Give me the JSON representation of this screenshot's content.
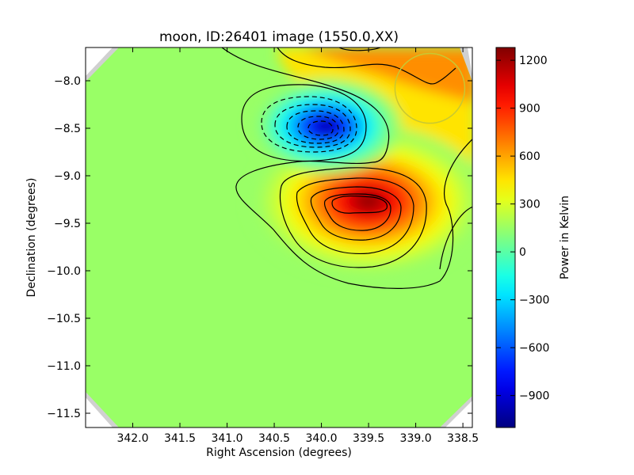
{
  "chart_data": {
    "type": "heatmap",
    "title": "moon, ID:26401 image (1550.0,XX)",
    "xlabel": "Right Ascension (degrees)",
    "ylabel": "Declination (degrees)",
    "colorbar_label": "Power in Kelvin",
    "xlim": [
      342.5,
      338.4
    ],
    "ylim": [
      -11.65,
      -7.65
    ],
    "xticks": [
      "342.0",
      "341.5",
      "341.0",
      "340.5",
      "340.0",
      "339.5",
      "339.0",
      "338.5"
    ],
    "xtick_values": [
      342.0,
      341.5,
      341.0,
      340.5,
      340.0,
      339.5,
      339.0,
      338.5
    ],
    "yticks": [
      "−8.0",
      "−8.5",
      "−9.0",
      "−9.5",
      "−10.0",
      "−10.5",
      "−11.0",
      "−11.5"
    ],
    "ytick_values": [
      -8.0,
      -8.5,
      -9.0,
      -9.5,
      -10.0,
      -10.5,
      -11.0,
      -11.5
    ],
    "colorbar_ticks": [
      "1200",
      "900",
      "600",
      "300",
      "0",
      "−300",
      "−600",
      "−900"
    ],
    "colorbar_tick_values": [
      1200,
      900,
      600,
      300,
      0,
      -300,
      -600,
      -900
    ],
    "colorbar_range": [
      -1100,
      1280
    ],
    "colormap": "jet",
    "background_value": 150,
    "features": [
      {
        "kind": "minimum",
        "center_ra": 339.95,
        "center_dec": -8.48,
        "peak": -1100
      },
      {
        "kind": "maximum",
        "center_ra": 339.5,
        "center_dec": -9.27,
        "peak": 1280
      },
      {
        "kind": "plateau",
        "center_ra": 339.2,
        "center_dec": -7.7,
        "peak": 650
      }
    ],
    "circle": {
      "center_ra": 338.85,
      "center_dec": -8.08,
      "radius_deg": 0.37,
      "color": "#c8c832"
    }
  }
}
